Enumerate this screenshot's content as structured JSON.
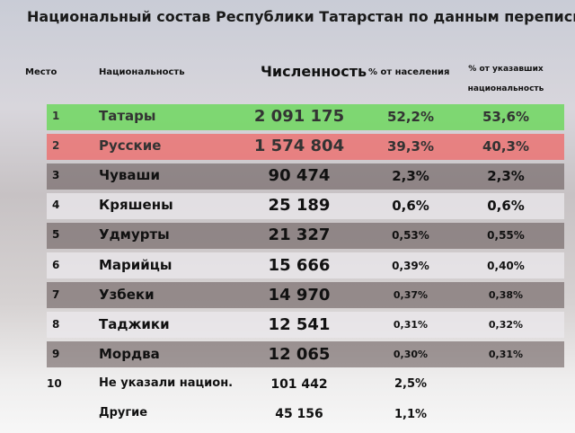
{
  "title": "Национальный состав Республики Татарстан по данным переписи",
  "table": {
    "header": {
      "place": "Место",
      "name": "Национальность",
      "count": "Численность",
      "pct": "% от населения",
      "pct_named": "% от указавших национальность"
    },
    "rows": [
      {
        "place": "1",
        "name": "Татары",
        "count": "2 091 175",
        "pct": "52,2%",
        "pct_named": "53,6%"
      },
      {
        "place": "2",
        "name": "Русские",
        "count": "1 574 804",
        "pct": "39,3%",
        "pct_named": "40,3%"
      },
      {
        "place": "3",
        "name": "Чуваши",
        "count": "90 474",
        "pct": "2,3%",
        "pct_named": "2,3%"
      },
      {
        "place": "4",
        "name": "Кряшены",
        "count": "25 189",
        "pct": "0,6%",
        "pct_named": "0,6%"
      },
      {
        "place": "5",
        "name": "Удмурты",
        "count": "21 327",
        "pct": "0,53%",
        "pct_named": "0,55%"
      },
      {
        "place": "6",
        "name": "Марийцы",
        "count": "15 666",
        "pct": "0,39%",
        "pct_named": "0,40%"
      },
      {
        "place": "7",
        "name": "Узбеки",
        "count": "14 970",
        "pct": "0,37%",
        "pct_named": "0,38%"
      },
      {
        "place": "8",
        "name": "Таджики",
        "count": "12 541",
        "pct": "0,31%",
        "pct_named": "0,32%"
      },
      {
        "place": "9",
        "name": "Мордва",
        "count": "12 065",
        "pct": "0,30%",
        "pct_named": "0,31%"
      },
      {
        "place": "10",
        "name": "Не указали национ.",
        "count": "101 442",
        "pct": "2,5%"
      },
      {
        "name": "Другие",
        "count": "45 156",
        "pct": "1,1%"
      }
    ]
  }
}
